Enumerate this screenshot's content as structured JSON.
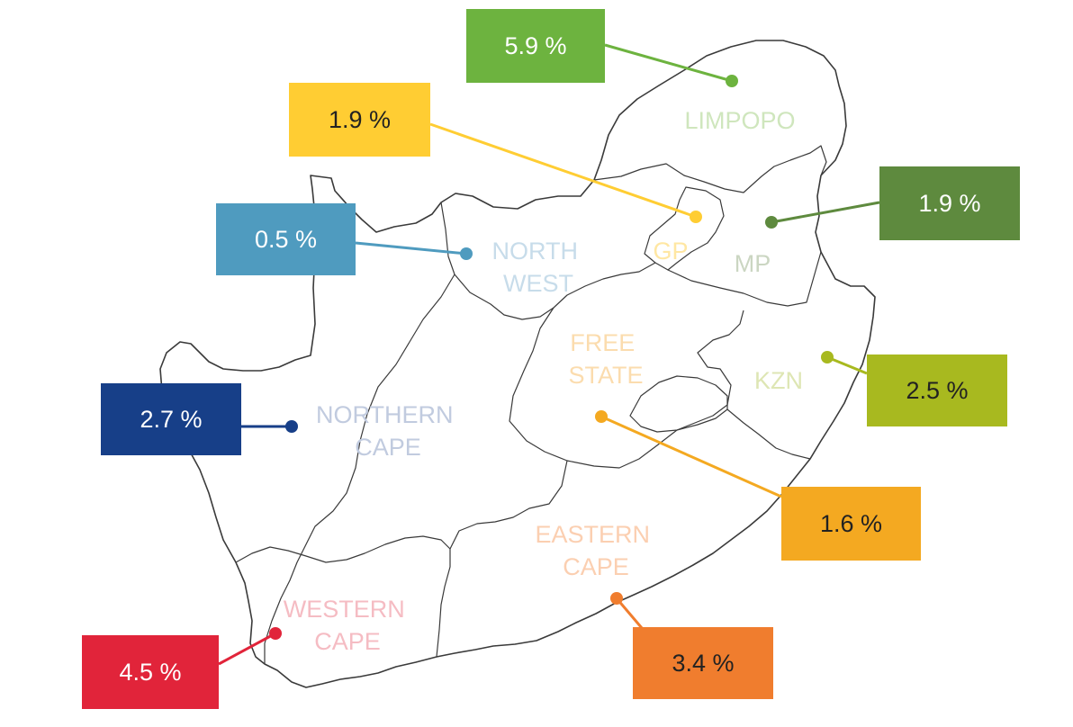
{
  "regions": [
    {
      "key": "limpopo",
      "lines": [
        "LIMPOPO"
      ],
      "value": "5.9 %",
      "color": "#6db33f",
      "label_color": "#cfe6bd",
      "text_color": "#ffffff"
    },
    {
      "key": "gp",
      "lines": [
        "GP"
      ],
      "value": "1.9 %",
      "color": "#ffcd33",
      "label_color": "#ffe7a3",
      "text_color": "#222222"
    },
    {
      "key": "north_west",
      "lines": [
        "NORTH",
        "WEST"
      ],
      "value": "0.5 %",
      "color": "#4f9bbf",
      "label_color": "#c7dcea",
      "text_color": "#ffffff"
    },
    {
      "key": "mp",
      "lines": [
        "MP"
      ],
      "value": "1.9 %",
      "color": "#5e8a3e",
      "label_color": "#cbd6c2",
      "text_color": "#ffffff"
    },
    {
      "key": "kzn",
      "lines": [
        "KZN"
      ],
      "value": "2.5 %",
      "color": "#a8b91f",
      "label_color": "#dee6b4",
      "text_color": "#222222"
    },
    {
      "key": "northern_cape",
      "lines": [
        "NORTHERN",
        "CAPE"
      ],
      "value": "2.7 %",
      "color": "#173f88",
      "label_color": "#c1cbdf",
      "text_color": "#ffffff"
    },
    {
      "key": "free_state",
      "lines": [
        "FREE",
        "STATE"
      ],
      "value": "1.6 %",
      "color": "#f4a921",
      "label_color": "#fbdcae",
      "text_color": "#222222"
    },
    {
      "key": "eastern_cape",
      "lines": [
        "EASTERN",
        "CAPE"
      ],
      "value": "3.4 %",
      "color": "#f07d2e",
      "label_color": "#fbcfb1",
      "text_color": "#222222"
    },
    {
      "key": "western_cape",
      "lines": [
        "WESTERN",
        "CAPE"
      ],
      "value": "4.5 %",
      "color": "#e1243a",
      "label_color": "#f5bcc3",
      "text_color": "#ffffff"
    }
  ]
}
